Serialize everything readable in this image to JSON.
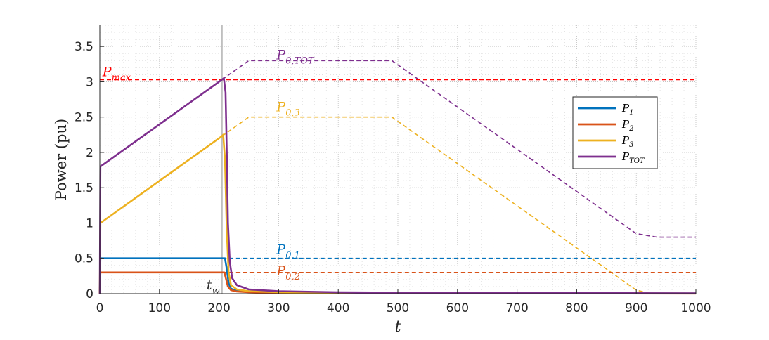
{
  "chart_data": {
    "type": "line",
    "title": "",
    "xlabel": "t",
    "ylabel": "Power (pu)",
    "xlim": [
      0,
      1000
    ],
    "ylim": [
      0,
      3.8
    ],
    "xticks": [
      0,
      100,
      200,
      300,
      400,
      500,
      600,
      700,
      800,
      900,
      1000
    ],
    "yticks": [
      0,
      0.5,
      1,
      1.5,
      2,
      2.5,
      3,
      3.5
    ],
    "xtick_labels": [
      "0",
      "100",
      "200",
      "300",
      "400",
      "500",
      "600",
      "700",
      "800",
      "900",
      "1000"
    ],
    "ytick_labels": [
      "0",
      "0.5",
      "1",
      "1.5",
      "2",
      "2.5",
      "3",
      "3.5"
    ],
    "grid": true,
    "minor_grid": true,
    "legend_position": "right",
    "colors": {
      "p1": "#0072BD",
      "p2": "#D95319",
      "p3": "#EDB120",
      "ptot": "#7E2F8E",
      "pmax": "#FF0000",
      "vline": "#BFBFBF"
    },
    "series": [
      {
        "name": "P_1",
        "label_main": "P",
        "label_sub": "1",
        "color_key": "p1",
        "style": "solid",
        "x": [
          0,
          1,
          205,
          210,
          213,
          216,
          220,
          230,
          250,
          300,
          400,
          600,
          1000
        ],
        "y": [
          0,
          0.5,
          0.5,
          0.5,
          0.35,
          0.15,
          0.07,
          0.04,
          0.025,
          0.015,
          0.01,
          0.005,
          0.003
        ]
      },
      {
        "name": "P_2",
        "label_main": "P",
        "label_sub": "2",
        "color_key": "p2",
        "style": "solid",
        "x": [
          0,
          1,
          205,
          209,
          212,
          215,
          220,
          230,
          250,
          300,
          400,
          600,
          1000
        ],
        "y": [
          0,
          0.3,
          0.3,
          0.3,
          0.2,
          0.1,
          0.05,
          0.03,
          0.02,
          0.012,
          0.008,
          0.004,
          0.002
        ]
      },
      {
        "name": "P_3",
        "label_main": "P",
        "label_sub": "3",
        "color_key": "p3",
        "style": "solid",
        "x": [
          0,
          1,
          205,
          207,
          210,
          213,
          216,
          220,
          230,
          250,
          300,
          400,
          600,
          1000
        ],
        "y": [
          0,
          1,
          2.23,
          2.25,
          1.9,
          0.9,
          0.3,
          0.12,
          0.06,
          0.035,
          0.02,
          0.012,
          0.006,
          0.003
        ]
      },
      {
        "name": "P_TOT",
        "label_main": "P",
        "label_sub": "TOT",
        "color_key": "ptot",
        "style": "solid",
        "x": [
          0,
          1,
          205,
          208,
          211,
          213,
          215,
          218,
          222,
          230,
          250,
          300,
          400,
          600,
          1000
        ],
        "y": [
          0,
          1.8,
          3.03,
          3.05,
          2.85,
          2.0,
          1.0,
          0.45,
          0.22,
          0.12,
          0.06,
          0.035,
          0.02,
          0.01,
          0.005
        ]
      }
    ],
    "reference_lines": [
      {
        "id": "p0tot",
        "label_main": "P",
        "label_sub": "0,TOT",
        "color_key": "ptot",
        "style": "dashed",
        "x": [
          205,
          250,
          490,
          900,
          935,
          1000
        ],
        "y": [
          3.03,
          3.3,
          3.3,
          0.85,
          0.8,
          0.8
        ],
        "label_x": 300,
        "label_y": 3.32
      },
      {
        "id": "p03",
        "label_main": "P",
        "label_sub": "0,3",
        "color_key": "p3",
        "style": "dashed",
        "x": [
          205,
          250,
          490,
          900,
          925,
          1000
        ],
        "y": [
          2.23,
          2.5,
          2.5,
          0.05,
          0,
          0
        ],
        "label_x": 300,
        "label_y": 2.58
      },
      {
        "id": "p01",
        "label_main": "P",
        "label_sub": "0,1",
        "color_key": "p1",
        "style": "dashed",
        "x": [
          205,
          1000
        ],
        "y": [
          0.5,
          0.5
        ],
        "label_x": 300,
        "label_y": 0.56
      },
      {
        "id": "p02",
        "label_main": "P",
        "label_sub": "0,2",
        "color_key": "p2",
        "style": "dashed",
        "x": [
          205,
          1000
        ],
        "y": [
          0.3,
          0.3
        ],
        "label_x": 300,
        "label_y": 0.26
      },
      {
        "id": "pmax",
        "label_main": "P",
        "label_sub": "max",
        "color_key": "pmax",
        "style": "dashed",
        "x": [
          0,
          1000
        ],
        "y": [
          3.03,
          3.03
        ],
        "label_x": 8,
        "label_y": 3.08
      }
    ],
    "vertical_marker": {
      "x": 205,
      "label_main": "t",
      "label_sub": "w",
      "color_key": "vline"
    }
  }
}
